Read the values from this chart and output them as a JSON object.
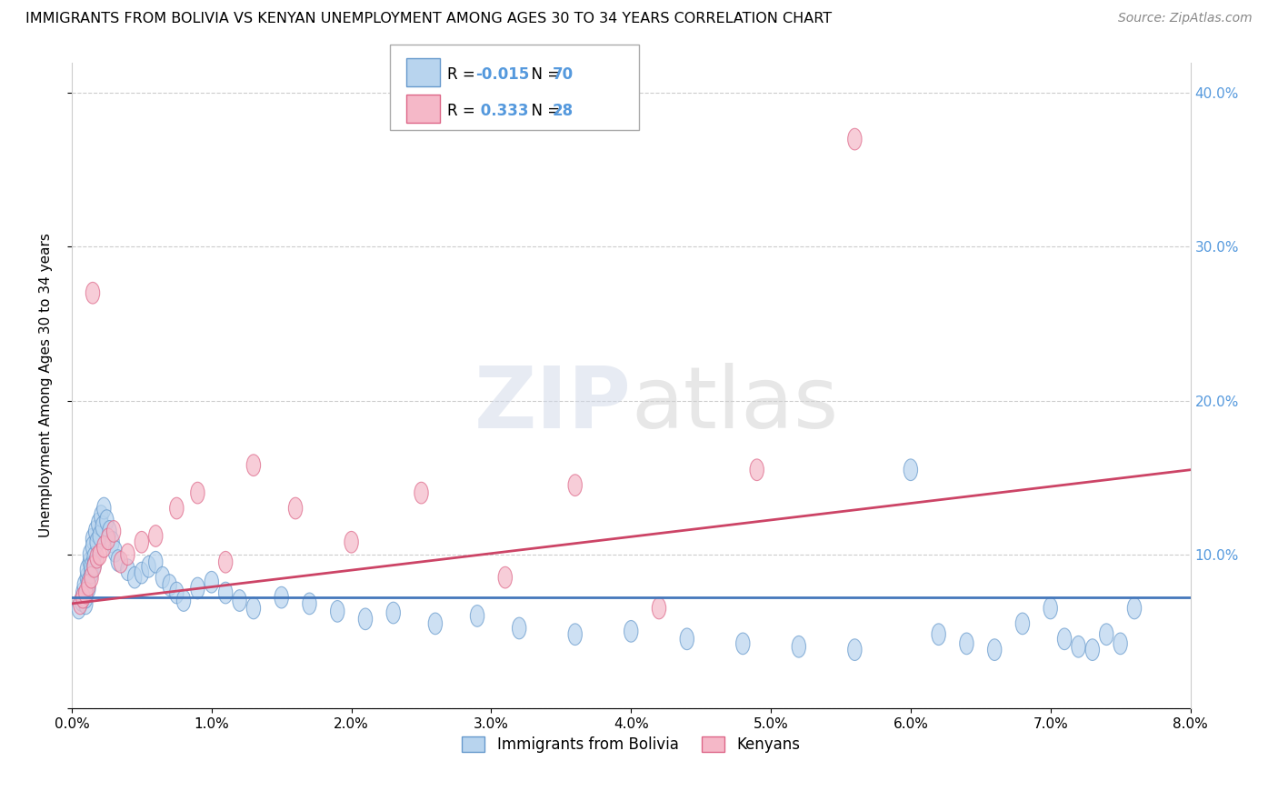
{
  "title": "IMMIGRANTS FROM BOLIVIA VS KENYAN UNEMPLOYMENT AMONG AGES 30 TO 34 YEARS CORRELATION CHART",
  "source": "Source: ZipAtlas.com",
  "ylabel": "Unemployment Among Ages 30 to 34 years",
  "legend_bolivia": "Immigrants from Bolivia",
  "legend_kenyans": "Kenyans",
  "r_bolivia": "-0.015",
  "n_bolivia": "70",
  "r_kenyans": "0.333",
  "n_kenyans": "28",
  "color_bolivia_fill": "#b8d4ee",
  "color_bolivia_edge": "#6699cc",
  "color_kenyans_fill": "#f5b8c8",
  "color_kenyans_edge": "#dd6688",
  "color_bolivia_line": "#4477bb",
  "color_kenyans_line": "#cc4466",
  "color_right_axis": "#5599dd",
  "xlim": [
    0.0,
    0.08
  ],
  "ylim": [
    0.0,
    0.42
  ],
  "yticks": [
    0.0,
    0.1,
    0.2,
    0.3,
    0.4
  ],
  "ytick_labels": [
    "",
    "10.0%",
    "20.0%",
    "30.0%",
    "40.0%"
  ],
  "bolivia_x": [
    0.0005,
    0.0007,
    0.0008,
    0.0009,
    0.001,
    0.001,
    0.0011,
    0.0011,
    0.0012,
    0.0012,
    0.0013,
    0.0013,
    0.0014,
    0.0014,
    0.0015,
    0.0015,
    0.0016,
    0.0016,
    0.0017,
    0.0018,
    0.0019,
    0.002,
    0.0021,
    0.0022,
    0.0023,
    0.0025,
    0.0027,
    0.0029,
    0.0031,
    0.0033,
    0.004,
    0.0045,
    0.005,
    0.0055,
    0.006,
    0.0065,
    0.007,
    0.0075,
    0.008,
    0.009,
    0.01,
    0.011,
    0.012,
    0.013,
    0.015,
    0.017,
    0.019,
    0.021,
    0.023,
    0.026,
    0.029,
    0.032,
    0.036,
    0.04,
    0.044,
    0.048,
    0.052,
    0.056,
    0.06,
    0.062,
    0.064,
    0.066,
    0.068,
    0.07,
    0.071,
    0.072,
    0.073,
    0.074,
    0.075,
    0.076
  ],
  "bolivia_y": [
    0.065,
    0.07,
    0.075,
    0.08,
    0.068,
    0.072,
    0.085,
    0.09,
    0.078,
    0.082,
    0.095,
    0.1,
    0.088,
    0.092,
    0.11,
    0.105,
    0.098,
    0.093,
    0.115,
    0.108,
    0.12,
    0.112,
    0.125,
    0.118,
    0.13,
    0.122,
    0.115,
    0.108,
    0.102,
    0.096,
    0.09,
    0.085,
    0.088,
    0.092,
    0.095,
    0.085,
    0.08,
    0.075,
    0.07,
    0.078,
    0.082,
    0.075,
    0.07,
    0.065,
    0.072,
    0.068,
    0.063,
    0.058,
    0.062,
    0.055,
    0.06,
    0.052,
    0.048,
    0.05,
    0.045,
    0.042,
    0.04,
    0.038,
    0.155,
    0.048,
    0.042,
    0.038,
    0.055,
    0.065,
    0.045,
    0.04,
    0.038,
    0.048,
    0.042,
    0.065
  ],
  "kenyans_x": [
    0.0006,
    0.0008,
    0.001,
    0.0012,
    0.0014,
    0.0015,
    0.0016,
    0.0018,
    0.002,
    0.0023,
    0.0026,
    0.003,
    0.0035,
    0.004,
    0.005,
    0.006,
    0.0075,
    0.009,
    0.011,
    0.013,
    0.016,
    0.02,
    0.025,
    0.031,
    0.036,
    0.042,
    0.049,
    0.056
  ],
  "kenyans_y": [
    0.068,
    0.072,
    0.075,
    0.08,
    0.085,
    0.27,
    0.092,
    0.098,
    0.1,
    0.105,
    0.11,
    0.115,
    0.095,
    0.1,
    0.108,
    0.112,
    0.13,
    0.14,
    0.095,
    0.158,
    0.13,
    0.108,
    0.14,
    0.085,
    0.145,
    0.065,
    0.155,
    0.37
  ]
}
